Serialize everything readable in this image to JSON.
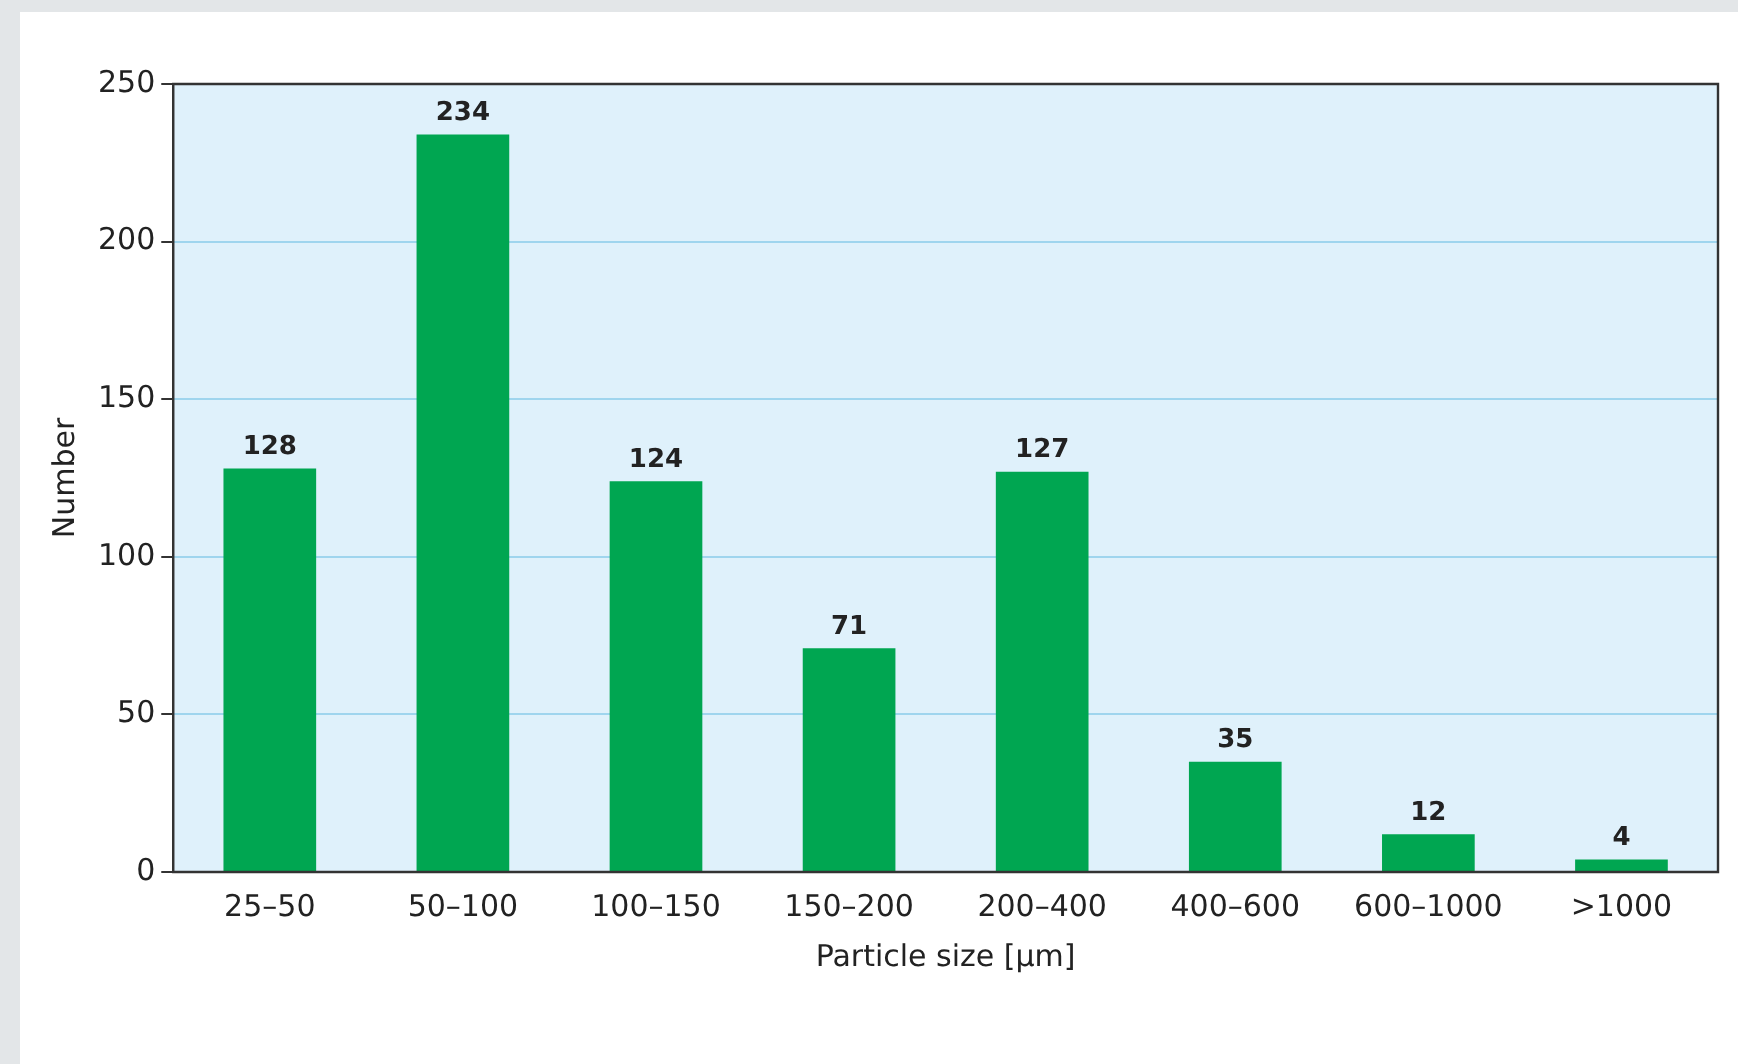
{
  "chart_data": {
    "type": "bar",
    "xlabel": "Particle size [µm]",
    "ylabel": "Number",
    "categories": [
      "25–50",
      "50–100",
      "100–150",
      "150–200",
      "200–400",
      "400–600",
      "600–1000",
      ">1000"
    ],
    "values": [
      128,
      234,
      124,
      71,
      127,
      35,
      12,
      4
    ],
    "color": "#00a651",
    "ylim": [
      0,
      250
    ],
    "yticks": [
      0,
      50,
      100,
      150,
      200,
      250
    ],
    "grid": "y",
    "data_labels": true,
    "legend": false
  }
}
